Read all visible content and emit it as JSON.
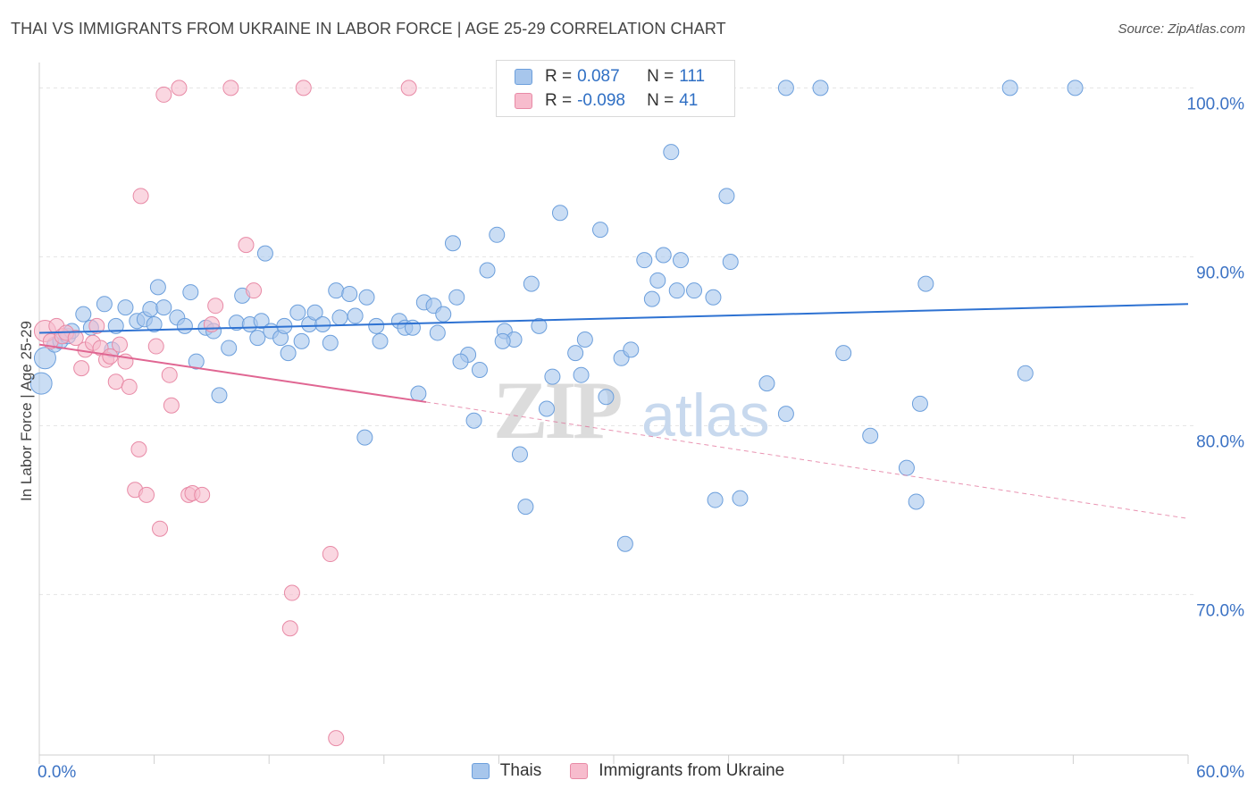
{
  "header": {
    "title": "THAI VS IMMIGRANTS FROM UKRAINE IN LABOR FORCE | AGE 25-29 CORRELATION CHART",
    "source": "Source: ZipAtlas.com"
  },
  "watermark": {
    "zip": "ZIP",
    "atlas": "atlas"
  },
  "legend": {
    "r_label": "R =",
    "n_label": "N =",
    "items": [
      {
        "r": "0.087",
        "n": "111",
        "color": "#a7c6ec",
        "stroke": "#6c9fdc"
      },
      {
        "r": "-0.098",
        "n": "41",
        "color": "#f7bccd",
        "stroke": "#e88aa6"
      }
    ]
  },
  "chart_data": {
    "type": "scatter",
    "title": "THAI VS IMMIGRANTS FROM UKRAINE IN LABOR FORCE | AGE 25-29 CORRELATION CHART",
    "ylabel": "In Labor Force | Age 25-29",
    "xlabel": "",
    "xlim": [
      0,
      60
    ],
    "ylim": [
      60.5,
      101.5
    ],
    "x_tick_labels": [
      "0.0%",
      "60.0%"
    ],
    "y_ticks": [
      {
        "value": 100,
        "label": "100.0%"
      },
      {
        "value": 90,
        "label": "90.0%"
      },
      {
        "value": 80,
        "label": "80.0%"
      },
      {
        "value": 70,
        "label": "70.0%"
      }
    ],
    "grid": true,
    "legend_position": "top-center",
    "series": [
      {
        "name": "Thais",
        "color": "#a7c6ec",
        "stroke": "#6c9fdc",
        "trend": {
          "x": [
            0,
            60
          ],
          "y": [
            85.5,
            87.2
          ],
          "color": "#2e72d2"
        },
        "points": [
          [
            0.1,
            82.5
          ],
          [
            0.3,
            84.0
          ],
          [
            0.8,
            84.8
          ],
          [
            1.1,
            85.0
          ],
          [
            1.5,
            85.3
          ],
          [
            1.7,
            85.6
          ],
          [
            2.3,
            86.6
          ],
          [
            2.7,
            85.8
          ],
          [
            3.4,
            87.2
          ],
          [
            3.8,
            84.5
          ],
          [
            4.0,
            85.9
          ],
          [
            4.5,
            87.0
          ],
          [
            5.1,
            86.2
          ],
          [
            5.5,
            86.3
          ],
          [
            5.8,
            86.9
          ],
          [
            6.0,
            86.0
          ],
          [
            6.2,
            88.2
          ],
          [
            6.5,
            87.0
          ],
          [
            7.2,
            86.4
          ],
          [
            7.6,
            85.9
          ],
          [
            7.9,
            87.9
          ],
          [
            8.2,
            83.8
          ],
          [
            8.7,
            85.8
          ],
          [
            9.1,
            85.6
          ],
          [
            9.4,
            81.8
          ],
          [
            9.9,
            84.6
          ],
          [
            10.3,
            86.1
          ],
          [
            10.6,
            87.7
          ],
          [
            11.0,
            86.0
          ],
          [
            11.4,
            85.2
          ],
          [
            11.6,
            86.2
          ],
          [
            11.8,
            90.2
          ],
          [
            12.1,
            85.6
          ],
          [
            12.6,
            85.2
          ],
          [
            12.8,
            85.9
          ],
          [
            13.0,
            84.3
          ],
          [
            13.5,
            86.7
          ],
          [
            13.7,
            85.0
          ],
          [
            14.1,
            86.0
          ],
          [
            14.4,
            86.7
          ],
          [
            14.8,
            86.0
          ],
          [
            15.2,
            84.9
          ],
          [
            15.5,
            88.0
          ],
          [
            15.7,
            86.4
          ],
          [
            16.2,
            87.8
          ],
          [
            16.5,
            86.5
          ],
          [
            17.1,
            87.6
          ],
          [
            17.6,
            85.9
          ],
          [
            17.8,
            85.0
          ],
          [
            17.0,
            79.3
          ],
          [
            18.8,
            86.2
          ],
          [
            19.1,
            85.8
          ],
          [
            19.5,
            85.8
          ],
          [
            19.8,
            81.9
          ],
          [
            20.1,
            87.3
          ],
          [
            20.6,
            87.1
          ],
          [
            20.8,
            85.5
          ],
          [
            21.1,
            86.6
          ],
          [
            21.6,
            90.8
          ],
          [
            21.8,
            87.6
          ],
          [
            22.4,
            84.2
          ],
          [
            22.7,
            80.3
          ],
          [
            23.0,
            83.3
          ],
          [
            23.4,
            89.2
          ],
          [
            23.9,
            91.3
          ],
          [
            24.3,
            85.6
          ],
          [
            24.8,
            85.1
          ],
          [
            25.1,
            78.3
          ],
          [
            25.4,
            75.2
          ],
          [
            25.7,
            88.4
          ],
          [
            26.1,
            85.9
          ],
          [
            26.5,
            81.0
          ],
          [
            26.8,
            82.9
          ],
          [
            27.2,
            92.6
          ],
          [
            28.0,
            84.3
          ],
          [
            28.3,
            83.0
          ],
          [
            28.5,
            85.1
          ],
          [
            29.3,
            91.6
          ],
          [
            29.6,
            81.7
          ],
          [
            30.4,
            84.0
          ],
          [
            30.6,
            73.0
          ],
          [
            30.9,
            84.5
          ],
          [
            31.6,
            89.8
          ],
          [
            32.0,
            87.5
          ],
          [
            32.3,
            88.6
          ],
          [
            32.6,
            90.1
          ],
          [
            33.0,
            96.2
          ],
          [
            33.3,
            88.0
          ],
          [
            33.5,
            89.8
          ],
          [
            34.2,
            88.0
          ],
          [
            35.2,
            87.6
          ],
          [
            35.3,
            75.6
          ],
          [
            35.9,
            93.6
          ],
          [
            36.1,
            89.7
          ],
          [
            36.6,
            75.7
          ],
          [
            38.0,
            82.5
          ],
          [
            39.0,
            80.7
          ],
          [
            39.0,
            100.0
          ],
          [
            40.8,
            100.0
          ],
          [
            42.0,
            84.3
          ],
          [
            43.4,
            79.4
          ],
          [
            45.3,
            77.5
          ],
          [
            46.0,
            81.3
          ],
          [
            46.3,
            88.4
          ],
          [
            45.8,
            75.5
          ],
          [
            50.7,
            100.0
          ],
          [
            51.5,
            83.1
          ],
          [
            54.1,
            100.0
          ],
          [
            25.2,
            100.0
          ],
          [
            24.2,
            85.0
          ],
          [
            22.0,
            83.8
          ]
        ]
      },
      {
        "name": "Immigrants from Ukraine",
        "color": "#f7bccd",
        "stroke": "#e88aa6",
        "trend": {
          "x": [
            0,
            20.2
          ],
          "y": [
            84.8,
            81.4
          ],
          "color": "#e06692",
          "extension": {
            "x": [
              20.2,
              60
            ],
            "y": [
              81.4,
              74.5
            ]
          }
        },
        "points": [
          [
            0.3,
            85.6
          ],
          [
            0.6,
            85.0
          ],
          [
            0.9,
            85.9
          ],
          [
            1.2,
            85.3
          ],
          [
            1.4,
            85.5
          ],
          [
            1.9,
            85.2
          ],
          [
            2.2,
            83.4
          ],
          [
            2.4,
            84.5
          ],
          [
            2.8,
            84.9
          ],
          [
            3.0,
            85.9
          ],
          [
            3.2,
            84.6
          ],
          [
            3.5,
            83.9
          ],
          [
            3.7,
            84.1
          ],
          [
            4.0,
            82.6
          ],
          [
            4.2,
            84.8
          ],
          [
            4.5,
            83.8
          ],
          [
            4.7,
            82.3
          ],
          [
            5.0,
            76.2
          ],
          [
            5.2,
            78.6
          ],
          [
            5.3,
            93.6
          ],
          [
            5.6,
            75.9
          ],
          [
            6.1,
            84.7
          ],
          [
            6.3,
            73.9
          ],
          [
            6.5,
            99.6
          ],
          [
            6.8,
            83.0
          ],
          [
            6.9,
            81.2
          ],
          [
            7.3,
            100.0
          ],
          [
            7.8,
            75.9
          ],
          [
            8.0,
            76.0
          ],
          [
            8.5,
            75.9
          ],
          [
            9.0,
            86.0
          ],
          [
            9.2,
            87.1
          ],
          [
            10.0,
            100.0
          ],
          [
            10.8,
            90.7
          ],
          [
            11.2,
            88.0
          ],
          [
            13.2,
            70.1
          ],
          [
            13.1,
            68.0
          ],
          [
            13.8,
            100.0
          ],
          [
            15.2,
            72.4
          ],
          [
            15.5,
            61.5
          ],
          [
            19.3,
            100.0
          ]
        ]
      }
    ]
  }
}
